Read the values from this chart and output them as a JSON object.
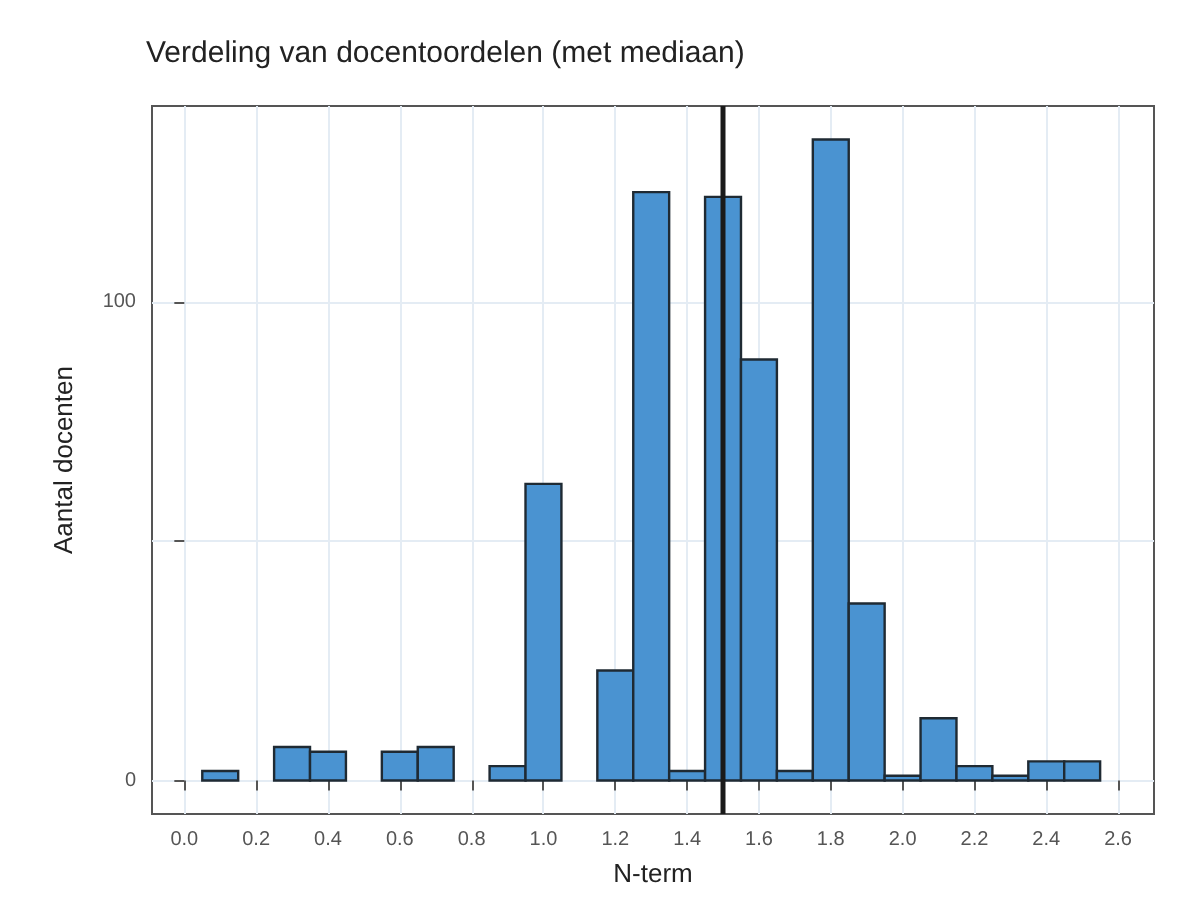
{
  "chart_data": {
    "type": "histogram",
    "title": "Verdeling van docentoordelen (met mediaan)",
    "xlabel": "N-term",
    "ylabel": "Aantal docenten",
    "bins": [
      0.05,
      0.15,
      0.25,
      0.35,
      0.45,
      0.55,
      0.65,
      0.75,
      0.85,
      0.95,
      1.05,
      1.15,
      1.25,
      1.35,
      1.45,
      1.55,
      1.65,
      1.75,
      1.85,
      1.95,
      2.05,
      2.15,
      2.25,
      2.35,
      2.45,
      2.55
    ],
    "values": [
      2,
      0,
      7,
      6,
      0,
      6,
      7,
      0,
      3,
      62,
      0,
      23,
      123,
      2,
      122,
      88,
      2,
      134,
      37,
      1,
      13,
      3,
      1,
      4,
      4
    ],
    "color": "#4a93d1",
    "xlim": [
      -0.09,
      2.7
    ],
    "xticks": [
      {
        "value": 0,
        "label": "0.0"
      },
      {
        "value": 0.2,
        "label": "0.2"
      },
      {
        "value": 0.4,
        "label": "0.4"
      },
      {
        "value": 0.6,
        "label": "0.6"
      },
      {
        "value": 0.8,
        "label": "0.8"
      },
      {
        "value": 1,
        "label": "1.0"
      },
      {
        "value": 1.2,
        "label": "1.2"
      },
      {
        "value": 1.4,
        "label": "1.4"
      },
      {
        "value": 1.6,
        "label": "1.6"
      },
      {
        "value": 1.8,
        "label": "1.8"
      },
      {
        "value": 2,
        "label": "2.0"
      },
      {
        "value": 2.2,
        "label": "2.2"
      },
      {
        "value": 2.4,
        "label": "2.4"
      },
      {
        "value": 2.6,
        "label": "2.6"
      }
    ],
    "ylim": [
      -7,
      141
    ],
    "yticks": [
      0,
      {
        "value": 50,
        "label": null
      },
      100
    ],
    "ref_lines": [
      {
        "axis": "x",
        "value": 1.5,
        "color": "#1a1a1a"
      }
    ],
    "grid": true
  }
}
